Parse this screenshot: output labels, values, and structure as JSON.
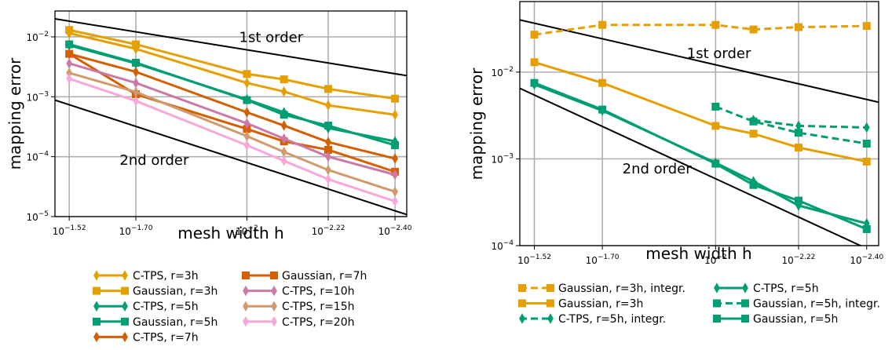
{
  "chart_data": [
    {
      "type": "line",
      "panel": "left",
      "xlabel": "mesh width h",
      "ylabel": "mapping error",
      "x_scale": "log (decreasing h)",
      "y_scale": "log",
      "xlim": [
        0.033,
        0.0037
      ],
      "ylim": [
        1e-05,
        0.027
      ],
      "x": [
        0.0302,
        0.01995,
        0.01,
        0.00794,
        0.00603,
        0.00398
      ],
      "x_tick_labels": [
        {
          "value": 0.0302,
          "base": "10",
          "exp": "−1.52"
        },
        {
          "value": 0.01995,
          "base": "10",
          "exp": "−1.70"
        },
        {
          "value": 0.01,
          "base": "10",
          "exp": "−2"
        },
        {
          "value": 0.00603,
          "base": "10",
          "exp": "−2.22"
        },
        {
          "value": 0.00398,
          "base": "10",
          "exp": "−2.40"
        }
      ],
      "y_tick_labels": [
        {
          "value": 1e-05,
          "base": "10",
          "exp": "−5"
        },
        {
          "value": 0.0001,
          "base": "10",
          "exp": "−4"
        },
        {
          "value": 0.001,
          "base": "10",
          "exp": "−3"
        },
        {
          "value": 0.01,
          "base": "10",
          "exp": "−2"
        }
      ],
      "grid": true,
      "reference_lines": [
        {
          "label": "1st order",
          "points": [
            [
              0.033,
              0.02
            ],
            [
              0.0037,
              0.00225
            ]
          ],
          "label_at": [
            0.0086,
            0.0082
          ]
        },
        {
          "label": "2nd order",
          "points": [
            [
              0.033,
              0.00088
            ],
            [
              0.0037,
              1.08e-05
            ]
          ],
          "label_at": [
            0.0178,
            7.3e-05
          ]
        }
      ],
      "series": [
        {
          "name": "C-TPS, r=3h",
          "color": "#E69F00",
          "marker": "diamond",
          "dash": false,
          "values": [
            0.0115,
            0.0063,
            0.0017,
            0.00122,
            0.00072,
            0.0005
          ]
        },
        {
          "name": "Gaussian, r=3h",
          "color": "#E69F00",
          "marker": "square",
          "dash": false,
          "values": [
            0.013,
            0.0075,
            0.0024,
            0.00195,
            0.00135,
            0.00093
          ]
        },
        {
          "name": "C-TPS, r=5h",
          "color": "#009E73",
          "marker": "diamond",
          "dash": false,
          "values": [
            0.0072,
            0.0036,
            0.0009,
            0.00055,
            0.0003,
            0.00018
          ]
        },
        {
          "name": "Gaussian, r=5h",
          "color": "#009E73",
          "marker": "square",
          "dash": false,
          "values": [
            0.0075,
            0.0037,
            0.00088,
            0.0005,
            0.00033,
            0.000155
          ]
        },
        {
          "name": "C-TPS, r=7h",
          "color": "#D55E00",
          "marker": "diamond",
          "dash": false,
          "values": [
            0.0052,
            0.0026,
            0.00055,
            0.00033,
            0.000175,
            9.3e-05
          ]
        },
        {
          "name": "Gaussian, r=7h",
          "color": "#D55E00",
          "marker": "square",
          "dash": false,
          "values": [
            0.0052,
            0.0011,
            0.00029,
            0.00018,
            0.00013,
            5.6e-05
          ]
        },
        {
          "name": "C-TPS, r=10h",
          "color": "#CC79A7",
          "marker": "diamond",
          "dash": false,
          "values": [
            0.0036,
            0.0017,
            0.00036,
            0.0002,
            0.0001,
            5e-05
          ]
        },
        {
          "name": "C-TPS, r=15h",
          "color": "#D19A6E",
          "marker": "diamond",
          "dash": false,
          "values": [
            0.0025,
            0.0012,
            0.00022,
            0.00012,
            6e-05,
            2.6e-05
          ]
        },
        {
          "name": "C-TPS, r=20h",
          "color": "#F7A8D8",
          "marker": "diamond",
          "dash": false,
          "values": [
            0.002,
            0.00085,
            0.000155,
            8.5e-05,
            4.2e-05,
            1.8e-05
          ]
        }
      ],
      "legend": {
        "placement": "below",
        "columns": 2
      }
    },
    {
      "type": "line",
      "panel": "right",
      "xlabel": "mesh width h",
      "ylabel": "mapping error",
      "x_scale": "log (decreasing h)",
      "y_scale": "log",
      "xlim": [
        0.033,
        0.0037
      ],
      "ylim": [
        0.0001,
        0.065
      ],
      "x": [
        0.0302,
        0.01995,
        0.01,
        0.00794,
        0.00603,
        0.00398
      ],
      "x_tick_labels": [
        {
          "value": 0.0302,
          "base": "10",
          "exp": "−1.52"
        },
        {
          "value": 0.01995,
          "base": "10",
          "exp": "−1.70"
        },
        {
          "value": 0.01,
          "base": "10",
          "exp": "−2"
        },
        {
          "value": 0.00603,
          "base": "10",
          "exp": "−2.22"
        },
        {
          "value": 0.00398,
          "base": "10",
          "exp": "−2.40"
        }
      ],
      "y_tick_labels": [
        {
          "value": 0.0001,
          "base": "10",
          "exp": "−4"
        },
        {
          "value": 0.001,
          "base": "10",
          "exp": "−3"
        },
        {
          "value": 0.01,
          "base": "10",
          "exp": "−2"
        }
      ],
      "grid": true,
      "reference_lines": [
        {
          "label": "1st order",
          "points": [
            [
              0.033,
              0.04
            ],
            [
              0.0037,
              0.0045
            ]
          ],
          "label_at": [
            0.0098,
            0.0145
          ]
        },
        {
          "label": "2nd order",
          "points": [
            [
              0.033,
              0.0065
            ],
            [
              0.0037,
              8e-05
            ]
          ],
          "label_at": [
            0.0143,
            0.00068
          ]
        }
      ],
      "series": [
        {
          "name": "Gaussian, r=3h, integr.",
          "color": "#E69F00",
          "marker": "square",
          "dash": true,
          "x": [
            0.0302,
            0.01995,
            0.01,
            0.00794,
            0.00603,
            0.00398
          ],
          "values": [
            0.027,
            0.035,
            0.035,
            0.031,
            0.033,
            0.034
          ]
        },
        {
          "name": "Gaussian, r=3h",
          "color": "#E69F00",
          "marker": "square",
          "dash": false,
          "x": [
            0.0302,
            0.01995,
            0.01,
            0.00794,
            0.00603,
            0.00398
          ],
          "values": [
            0.013,
            0.0075,
            0.0024,
            0.00195,
            0.00135,
            0.00093
          ]
        },
        {
          "name": "C-TPS, r=5h, integr.",
          "color": "#009E73",
          "marker": "diamond",
          "dash": true,
          "x": [
            0.00794,
            0.00603,
            0.00398
          ],
          "values": [
            0.0028,
            0.0024,
            0.0023
          ]
        },
        {
          "name": "C-TPS, r=5h",
          "color": "#009E73",
          "marker": "diamond",
          "dash": false,
          "x": [
            0.0302,
            0.01995,
            0.01,
            0.00794,
            0.00603,
            0.00398
          ],
          "values": [
            0.0072,
            0.0036,
            0.0009,
            0.00055,
            0.00029,
            0.00018
          ]
        },
        {
          "name": "Gaussian, r=5h, integr.",
          "color": "#009E73",
          "marker": "square",
          "dash": true,
          "x": [
            0.01,
            0.00794,
            0.00603,
            0.00398
          ],
          "values": [
            0.004,
            0.0027,
            0.002,
            0.0015
          ]
        },
        {
          "name": "Gaussian, r=5h",
          "color": "#009E73",
          "marker": "square",
          "dash": false,
          "x": [
            0.0302,
            0.01995,
            0.01,
            0.00794,
            0.00603,
            0.00398
          ],
          "values": [
            0.0075,
            0.0037,
            0.00088,
            0.0005,
            0.00033,
            0.000155
          ]
        }
      ],
      "legend": {
        "placement": "below",
        "columns": 2
      }
    }
  ]
}
